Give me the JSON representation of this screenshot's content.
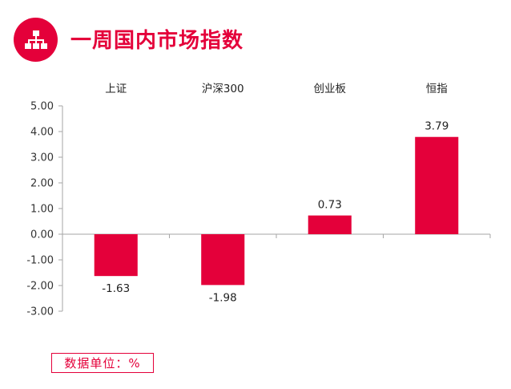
{
  "header": {
    "title": "一周国内市场指数",
    "icon": "org-chart-icon"
  },
  "colors": {
    "accent": "#e4003a",
    "axis": "#a6a6a6",
    "text": "#222222"
  },
  "unit_note": "数据单位：%",
  "chart_data": {
    "type": "bar",
    "title": "一周国内市场指数",
    "categories": [
      "上证",
      "沪深300",
      "创业板",
      "恒指"
    ],
    "values": [
      -1.63,
      -1.98,
      0.73,
      3.79
    ],
    "value_labels": [
      "-1.63",
      "-1.98",
      "0.73",
      "3.79"
    ],
    "ylim": [
      -3.0,
      5.0
    ],
    "yticks": [
      "5.00",
      "4.00",
      "3.00",
      "2.00",
      "1.00",
      "0.00",
      "-1.00",
      "-2.00",
      "-3.00"
    ],
    "category_axis": "top",
    "grid": false,
    "legend": "none"
  }
}
